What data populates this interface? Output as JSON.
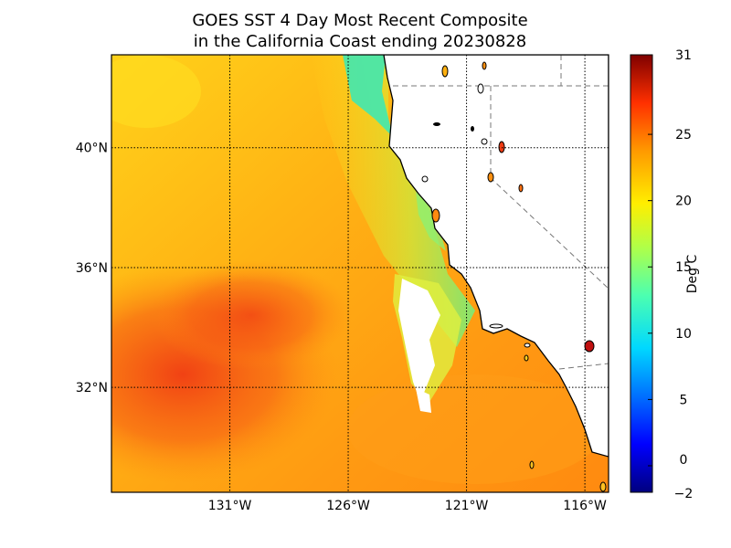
{
  "title": {
    "line1": "GOES SST 4 Day Most Recent Composite",
    "line2": "in the California Coast ending 20230828"
  },
  "map": {
    "lon_range": [
      -136,
      -115
    ],
    "lat_range": [
      28.5,
      43.1
    ],
    "lat_ticks": [
      {
        "value": 40,
        "label": "40°N"
      },
      {
        "value": 36,
        "label": "36°N"
      },
      {
        "value": 32,
        "label": "32°N"
      }
    ],
    "lon_ticks": [
      {
        "value": -131,
        "label": "131°W"
      },
      {
        "value": -126,
        "label": "126°W"
      },
      {
        "value": -121,
        "label": "121°W"
      },
      {
        "value": -116,
        "label": "116°W"
      }
    ]
  },
  "colorbar": {
    "label": "Deg C",
    "range": [
      -2,
      31
    ],
    "ticks": [
      {
        "value": 31,
        "label": "31"
      },
      {
        "value": 25,
        "label": "25"
      },
      {
        "value": 20,
        "label": "20"
      },
      {
        "value": 15,
        "label": "15"
      },
      {
        "value": 10,
        "label": "10"
      },
      {
        "value": 5,
        "label": "5"
      },
      {
        "value": 0,
        "label": "0"
      },
      {
        "value": -2,
        "label": "−2"
      }
    ]
  },
  "colors": {
    "land": "#ffffff",
    "warm_pool": "#f03c14",
    "cold_upwelling": "#3ee8a8",
    "grid": "#000000"
  }
}
